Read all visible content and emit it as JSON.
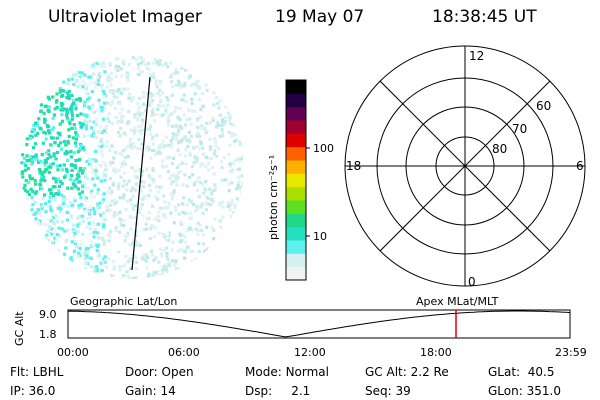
{
  "header": {
    "instrument": "Ultraviolet Imager",
    "date": "19 May 07",
    "time": "18:38:45 UT"
  },
  "colorbar": {
    "unit_label": "photon cm⁻²s⁻¹",
    "ticks": [
      "100",
      "10"
    ],
    "scale": "log",
    "colors": [
      "#f2f2f2",
      "#d4f0f0",
      "#5cf0f0",
      "#22e0c0",
      "#22d888",
      "#5ce022",
      "#aae000",
      "#e8e800",
      "#ffb000",
      "#ff6000",
      "#e00000",
      "#a00030",
      "#600050",
      "#200040",
      "#000000"
    ]
  },
  "polar_plot": {
    "lat_labels": [
      "60",
      "70",
      "80"
    ],
    "mlt_labels": {
      "top": "12",
      "bottom": "0",
      "left": "18",
      "right": "6"
    }
  },
  "orbit_plot": {
    "left_title": "Geographic Lat/Lon",
    "right_title": "Apex MLat/MLT",
    "ylabel": "GC Alt",
    "yticks": [
      "9.0",
      "1.8"
    ],
    "xticks": [
      "00:00",
      "06:00",
      "12:00",
      "18:00",
      "23:59"
    ],
    "current_time_marker": "18:38",
    "marker_color": "#e00000"
  },
  "status": {
    "row1": [
      {
        "label": "Flt:",
        "value": "LBHL"
      },
      {
        "label": "Door:",
        "value": "Open"
      },
      {
        "label": "Mode:",
        "value": "Normal"
      },
      {
        "label": "GC Alt:",
        "value": "2.2 Re"
      },
      {
        "label": "GLat:",
        "value": "40.5"
      }
    ],
    "row2": [
      {
        "label": "IP:",
        "value": "36.0"
      },
      {
        "label": "Gain:",
        "value": "14"
      },
      {
        "label": "Dsp:",
        "value": "2.1"
      },
      {
        "label": "Seq:",
        "value": "39"
      },
      {
        "label": "GLon:",
        "value": "351.0"
      }
    ]
  }
}
